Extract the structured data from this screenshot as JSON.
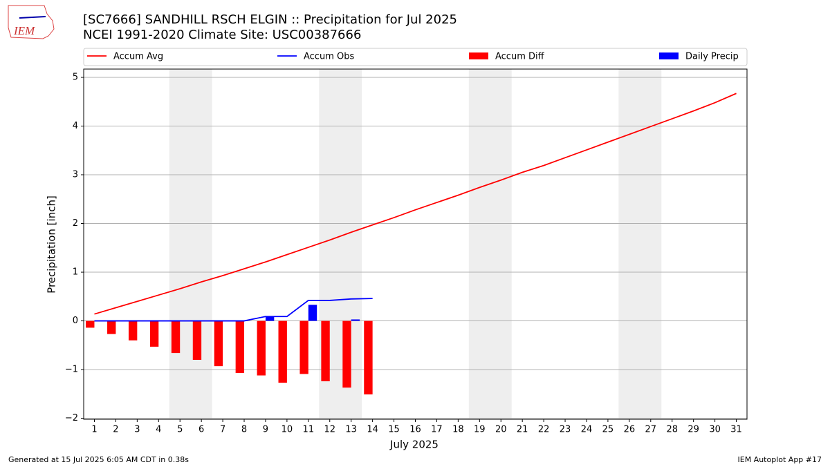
{
  "logo_text": "IEM",
  "footer_left": "Generated at 15 Jul 2025 6:05 AM CDT in 0.38s",
  "footer_right": "IEM Autoplot App #17",
  "chart_data": {
    "type": "combo",
    "title": "[SC7666] SANDHILL RSCH ELGIN :: Precipitation for Jul 2025",
    "subtitle": "NCEI 1991-2020 Climate Site: USC00387666",
    "xlabel": "July 2025",
    "ylabel": "Precipitation [inch]",
    "x": [
      1,
      2,
      3,
      4,
      5,
      6,
      7,
      8,
      9,
      10,
      11,
      12,
      13,
      14,
      15,
      16,
      17,
      18,
      19,
      20,
      21,
      22,
      23,
      24,
      25,
      26,
      27,
      28,
      29,
      30,
      31
    ],
    "xlim": [
      0.5,
      31.5
    ],
    "xticks": [
      1,
      2,
      3,
      4,
      5,
      6,
      7,
      8,
      9,
      10,
      11,
      12,
      13,
      14,
      15,
      16,
      17,
      18,
      19,
      20,
      21,
      22,
      23,
      24,
      25,
      26,
      27,
      28,
      29,
      30,
      31
    ],
    "ylim": [
      -2.02,
      5.17
    ],
    "yticks": [
      {
        "value": -2,
        "label": "−2"
      },
      {
        "value": -1,
        "label": "−1"
      },
      0,
      1,
      2,
      3,
      4,
      5
    ],
    "grid": true,
    "shaded_spans": [
      [
        4.5,
        6.5
      ],
      [
        11.5,
        13.5
      ],
      [
        18.5,
        20.5
      ],
      [
        25.5,
        27.5
      ]
    ],
    "series": [
      {
        "name": "Accum Avg",
        "type": "line",
        "color": "#ff0000",
        "values": [
          0.14,
          0.27,
          0.4,
          0.53,
          0.66,
          0.8,
          0.93,
          1.07,
          1.21,
          1.36,
          1.51,
          1.66,
          1.82,
          1.97,
          2.12,
          2.28,
          2.43,
          2.58,
          2.74,
          2.89,
          3.05,
          3.19,
          3.35,
          3.51,
          3.67,
          3.83,
          3.99,
          4.15,
          4.31,
          4.48,
          4.67
        ]
      },
      {
        "name": "Accum Obs",
        "type": "line",
        "color": "#0000ff",
        "values": [
          0,
          0,
          0,
          0,
          0,
          0,
          0,
          0,
          0.09,
          0.09,
          0.42,
          0.42,
          0.45,
          0.46,
          null,
          null,
          null,
          null,
          null,
          null,
          null,
          null,
          null,
          null,
          null,
          null,
          null,
          null,
          null,
          null,
          null
        ]
      },
      {
        "name": "Accum Diff",
        "type": "bar",
        "offset": -0.2,
        "color": "#ff0000",
        "values": [
          -0.14,
          -0.27,
          -0.4,
          -0.53,
          -0.66,
          -0.8,
          -0.93,
          -1.07,
          -1.12,
          -1.27,
          -1.09,
          -1.24,
          -1.37,
          -1.51,
          null,
          null,
          null,
          null,
          null,
          null,
          null,
          null,
          null,
          null,
          null,
          null,
          null,
          null,
          null,
          null,
          null
        ]
      },
      {
        "name": "Daily Precip",
        "type": "bar",
        "offset": 0.2,
        "color": "#0000ff",
        "values": [
          0,
          0,
          0,
          0,
          0,
          0,
          0,
          0,
          0.09,
          0,
          0.33,
          0,
          0.03,
          0,
          null,
          null,
          null,
          null,
          null,
          null,
          null,
          null,
          null,
          null,
          null,
          null,
          null,
          null,
          null,
          null,
          null
        ]
      }
    ]
  }
}
